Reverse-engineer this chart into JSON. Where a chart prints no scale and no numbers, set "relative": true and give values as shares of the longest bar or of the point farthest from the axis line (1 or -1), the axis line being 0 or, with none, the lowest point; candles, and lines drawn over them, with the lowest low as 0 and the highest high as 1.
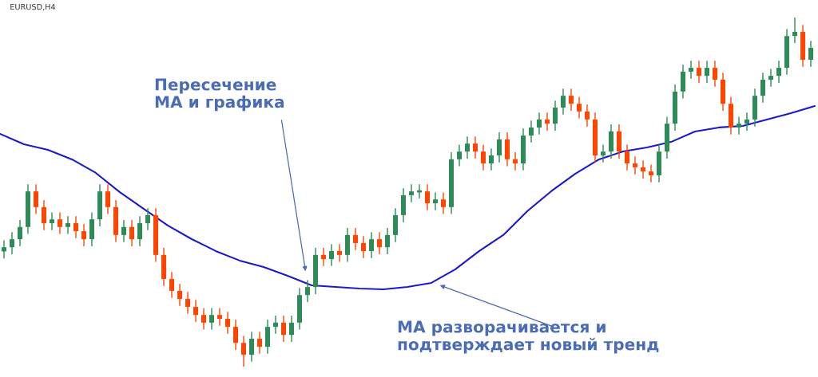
{
  "chart_data": [
    {
      "type": "candlestick",
      "relative": true,
      "title": "EURUSD,H4",
      "annotations": [
        "Пересечение\nМА и графика",
        "МА разворачивается и\nподтверждает новый тренд"
      ],
      "categories": [
        null,
        null,
        null,
        null,
        null,
        null,
        null,
        null,
        null,
        null,
        null,
        null,
        null,
        null,
        null,
        null,
        null,
        null,
        null,
        null,
        null,
        null,
        null,
        null,
        null,
        null,
        null,
        null,
        null,
        null,
        null,
        null,
        null,
        null,
        null,
        null,
        null,
        null,
        null,
        null,
        null,
        null,
        null,
        null,
        null,
        null,
        null,
        null,
        null,
        null,
        null,
        null,
        null,
        null,
        null,
        null,
        null,
        null,
        null,
        null,
        null,
        null,
        null,
        null,
        null,
        null,
        null,
        null,
        null,
        null,
        null,
        null,
        null,
        null,
        null,
        null,
        null,
        null,
        null,
        null,
        null,
        null,
        null,
        null,
        null,
        null,
        null,
        null,
        null,
        null,
        null,
        null,
        null,
        null,
        null,
        null,
        null,
        null,
        null,
        null,
        null,
        null
      ],
      "ohlc": [
        [
          0.33,
          0.362,
          0.31,
          0.342
        ],
        [
          0.342,
          0.385,
          0.322,
          0.365
        ],
        [
          0.365,
          0.42,
          0.345,
          0.4
        ],
        [
          0.4,
          0.522,
          0.38,
          0.502
        ],
        [
          0.502,
          0.522,
          0.437,
          0.457
        ],
        [
          0.457,
          0.477,
          0.391,
          0.411
        ],
        [
          0.411,
          0.442,
          0.391,
          0.422
        ],
        [
          0.422,
          0.442,
          0.38,
          0.4
        ],
        [
          0.4,
          0.431,
          0.38,
          0.411
        ],
        [
          0.411,
          0.431,
          0.368,
          0.388
        ],
        [
          0.388,
          0.408,
          0.345,
          0.365
        ],
        [
          0.365,
          0.442,
          0.345,
          0.422
        ],
        [
          0.422,
          0.522,
          0.402,
          0.502
        ],
        [
          0.502,
          0.522,
          0.437,
          0.457
        ],
        [
          0.457,
          0.477,
          0.357,
          0.377
        ],
        [
          0.377,
          0.42,
          0.357,
          0.4
        ],
        [
          0.4,
          0.42,
          0.345,
          0.365
        ],
        [
          0.365,
          0.431,
          0.345,
          0.411
        ],
        [
          0.411,
          0.454,
          0.391,
          0.434
        ],
        [
          0.434,
          0.454,
          0.3,
          0.32
        ],
        [
          0.32,
          0.34,
          0.231,
          0.251
        ],
        [
          0.251,
          0.271,
          0.197,
          0.217
        ],
        [
          0.217,
          0.237,
          0.174,
          0.194
        ],
        [
          0.194,
          0.214,
          0.151,
          0.171
        ],
        [
          0.171,
          0.191,
          0.128,
          0.148
        ],
        [
          0.148,
          0.168,
          0.106,
          0.126
        ],
        [
          0.126,
          0.168,
          0.106,
          0.148
        ],
        [
          0.148,
          0.168,
          0.117,
          0.137
        ],
        [
          0.137,
          0.157,
          0.094,
          0.114
        ],
        [
          0.114,
          0.134,
          0.048,
          0.068
        ],
        [
          0.068,
          0.088,
          0,
          0.034
        ],
        [
          0.034,
          0.1,
          0.014,
          0.08
        ],
        [
          0.08,
          0.1,
          0.037,
          0.057
        ],
        [
          0.057,
          0.134,
          0.037,
          0.114
        ],
        [
          0.114,
          0.146,
          0.094,
          0.126
        ],
        [
          0.126,
          0.146,
          0.071,
          0.091
        ],
        [
          0.091,
          0.146,
          0.071,
          0.126
        ],
        [
          0.126,
          0.225,
          0.106,
          0.205
        ],
        [
          0.205,
          0.248,
          0.185,
          0.228
        ],
        [
          0.228,
          0.34,
          0.208,
          0.32
        ],
        [
          0.32,
          0.34,
          0.288,
          0.308
        ],
        [
          0.308,
          0.351,
          0.288,
          0.331
        ],
        [
          0.331,
          0.351,
          0.3,
          0.32
        ],
        [
          0.32,
          0.397,
          0.3,
          0.377
        ],
        [
          0.377,
          0.397,
          0.334,
          0.354
        ],
        [
          0.354,
          0.374,
          0.311,
          0.331
        ],
        [
          0.331,
          0.385,
          0.311,
          0.365
        ],
        [
          0.365,
          0.385,
          0.322,
          0.342
        ],
        [
          0.342,
          0.397,
          0.322,
          0.377
        ],
        [
          0.377,
          0.454,
          0.357,
          0.434
        ],
        [
          0.434,
          0.511,
          0.414,
          0.491
        ],
        [
          0.491,
          0.522,
          0.471,
          0.502
        ],
        [
          0.502,
          0.522,
          0.482,
          0.502
        ],
        [
          0.502,
          0.522,
          0.448,
          0.468
        ],
        [
          0.468,
          0.499,
          0.448,
          0.479
        ],
        [
          0.479,
          0.499,
          0.437,
          0.457
        ],
        [
          0.457,
          0.614,
          0.437,
          0.594
        ],
        [
          0.594,
          0.636,
          0.574,
          0.616
        ],
        [
          0.616,
          0.659,
          0.596,
          0.639
        ],
        [
          0.639,
          0.659,
          0.596,
          0.616
        ],
        [
          0.616,
          0.636,
          0.562,
          0.582
        ],
        [
          0.582,
          0.625,
          0.562,
          0.605
        ],
        [
          0.605,
          0.671,
          0.585,
          0.651
        ],
        [
          0.651,
          0.671,
          0.574,
          0.594
        ],
        [
          0.594,
          0.614,
          0.562,
          0.582
        ],
        [
          0.582,
          0.682,
          0.562,
          0.662
        ],
        [
          0.662,
          0.705,
          0.642,
          0.685
        ],
        [
          0.685,
          0.728,
          0.665,
          0.708
        ],
        [
          0.708,
          0.728,
          0.676,
          0.696
        ],
        [
          0.696,
          0.762,
          0.676,
          0.742
        ],
        [
          0.742,
          0.796,
          0.722,
          0.776
        ],
        [
          0.776,
          0.796,
          0.733,
          0.753
        ],
        [
          0.753,
          0.773,
          0.711,
          0.731
        ],
        [
          0.731,
          0.751,
          0.688,
          0.708
        ],
        [
          0.708,
          0.728,
          0.585,
          0.605
        ],
        [
          0.605,
          0.636,
          0.585,
          0.616
        ],
        [
          0.616,
          0.694,
          0.596,
          0.674
        ],
        [
          0.674,
          0.694,
          0.596,
          0.616
        ],
        [
          0.616,
          0.636,
          0.562,
          0.582
        ],
        [
          0.582,
          0.602,
          0.551,
          0.571
        ],
        [
          0.571,
          0.591,
          0.539,
          0.559
        ],
        [
          0.559,
          0.579,
          0.528,
          0.548
        ],
        [
          0.548,
          0.636,
          0.528,
          0.616
        ],
        [
          0.616,
          0.716,
          0.596,
          0.696
        ],
        [
          0.696,
          0.808,
          0.676,
          0.788
        ],
        [
          0.788,
          0.865,
          0.768,
          0.845
        ],
        [
          0.845,
          0.876,
          0.825,
          0.856
        ],
        [
          0.856,
          0.876,
          0.813,
          0.833
        ],
        [
          0.833,
          0.876,
          0.813,
          0.856
        ],
        [
          0.856,
          0.876,
          0.802,
          0.822
        ],
        [
          0.822,
          0.842,
          0.733,
          0.753
        ],
        [
          0.753,
          0.773,
          0.665,
          0.685
        ],
        [
          0.685,
          0.716,
          0.665,
          0.696
        ],
        [
          0.696,
          0.728,
          0.676,
          0.708
        ],
        [
          0.708,
          0.796,
          0.688,
          0.776
        ],
        [
          0.776,
          0.842,
          0.756,
          0.822
        ],
        [
          0.822,
          0.853,
          0.802,
          0.833
        ],
        [
          0.833,
          0.876,
          0.813,
          0.856
        ],
        [
          0.856,
          0.967,
          0.836,
          0.947
        ],
        [
          0.947,
          1,
          0.927,
          0.959
        ],
        [
          0.959,
          0.979,
          0.859,
          0.879
        ],
        [
          0.879,
          0.933,
          0.859,
          0.913
        ]
      ]
    },
    {
      "type": "line",
      "relative": true,
      "categories": [
        null,
        null,
        null,
        null,
        null,
        null,
        null,
        null,
        null,
        null,
        null,
        null,
        null,
        null,
        null,
        null,
        null,
        null,
        null,
        null,
        null,
        null,
        null,
        null,
        null,
        null,
        null,
        null,
        null,
        null,
        null,
        null,
        null,
        null,
        null
      ],
      "series": [
        {
          "color": "#1a1acc",
          "values": [
            0.848,
            0.791,
            0.761,
            0.709,
            0.635,
            0.53,
            0.439,
            0.348,
            0.274,
            0.209,
            0.157,
            0.122,
            0.074,
            0.022,
            0.013,
            0.004,
            0,
            0.013,
            0.035,
            0.109,
            0.209,
            0.296,
            0.426,
            0.535,
            0.63,
            0.709,
            0.752,
            0.774,
            0.804,
            0.861,
            0.883,
            0.891,
            0.926,
            0.961,
            1
          ]
        }
      ]
    }
  ]
}
